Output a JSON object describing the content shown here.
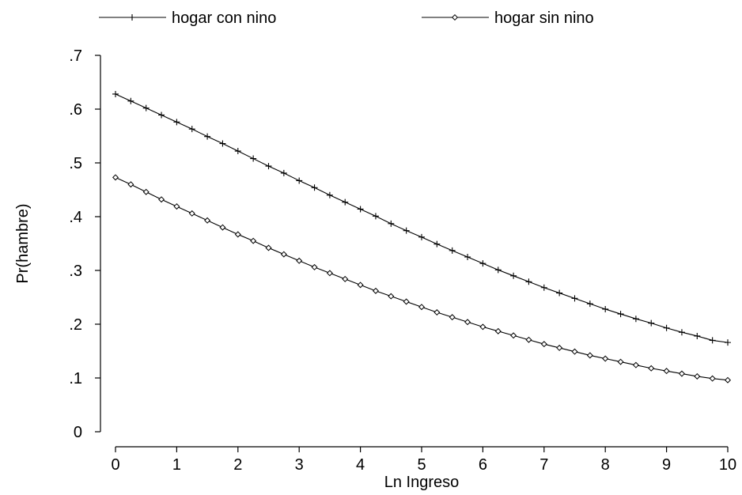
{
  "chart_data": {
    "type": "line",
    "xlabel": "Ln Ingreso",
    "ylabel": "Pr(hambre)",
    "xlim": [
      0,
      10
    ],
    "ylim": [
      0,
      0.7
    ],
    "x_ticks": [
      0,
      1,
      2,
      3,
      4,
      5,
      6,
      7,
      8,
      9,
      10
    ],
    "x_tick_labels": [
      "0",
      "1",
      "2",
      "3",
      "4",
      "5",
      "6",
      "7",
      "8",
      "9",
      "10"
    ],
    "y_ticks": [
      0,
      0.1,
      0.2,
      0.3,
      0.4,
      0.5,
      0.6,
      0.7
    ],
    "y_tick_labels": [
      "0",
      ".1",
      ".2",
      ".3",
      ".4",
      ".5",
      ".6",
      ".7"
    ],
    "grid": false,
    "legend_position": "top",
    "line_color": "#000000",
    "x": [
      0.0,
      0.25,
      0.5,
      0.75,
      1.0,
      1.25,
      1.5,
      1.75,
      2.0,
      2.25,
      2.5,
      2.75,
      3.0,
      3.25,
      3.5,
      3.75,
      4.0,
      4.25,
      4.5,
      4.75,
      5.0,
      5.25,
      5.5,
      5.75,
      6.0,
      6.25,
      6.5,
      6.75,
      7.0,
      7.25,
      7.5,
      7.75,
      8.0,
      8.25,
      8.5,
      8.75,
      9.0,
      9.25,
      9.5,
      9.75,
      10.0
    ],
    "series": [
      {
        "name": "hogar con nino",
        "marker": "plus",
        "values": [
          0.628,
          0.615,
          0.602,
          0.589,
          0.576,
          0.563,
          0.549,
          0.536,
          0.522,
          0.508,
          0.494,
          0.481,
          0.467,
          0.454,
          0.44,
          0.427,
          0.414,
          0.401,
          0.387,
          0.374,
          0.362,
          0.349,
          0.337,
          0.325,
          0.313,
          0.301,
          0.29,
          0.279,
          0.268,
          0.258,
          0.248,
          0.238,
          0.228,
          0.219,
          0.21,
          0.202,
          0.193,
          0.185,
          0.178,
          0.17,
          0.166
        ]
      },
      {
        "name": "hogar sin nino",
        "marker": "diamond",
        "values": [
          0.473,
          0.46,
          0.446,
          0.432,
          0.419,
          0.406,
          0.393,
          0.38,
          0.367,
          0.355,
          0.342,
          0.33,
          0.318,
          0.306,
          0.295,
          0.284,
          0.273,
          0.262,
          0.252,
          0.242,
          0.232,
          0.222,
          0.213,
          0.204,
          0.195,
          0.187,
          0.179,
          0.171,
          0.163,
          0.156,
          0.149,
          0.142,
          0.136,
          0.13,
          0.124,
          0.118,
          0.113,
          0.108,
          0.103,
          0.099,
          0.096
        ]
      }
    ]
  }
}
